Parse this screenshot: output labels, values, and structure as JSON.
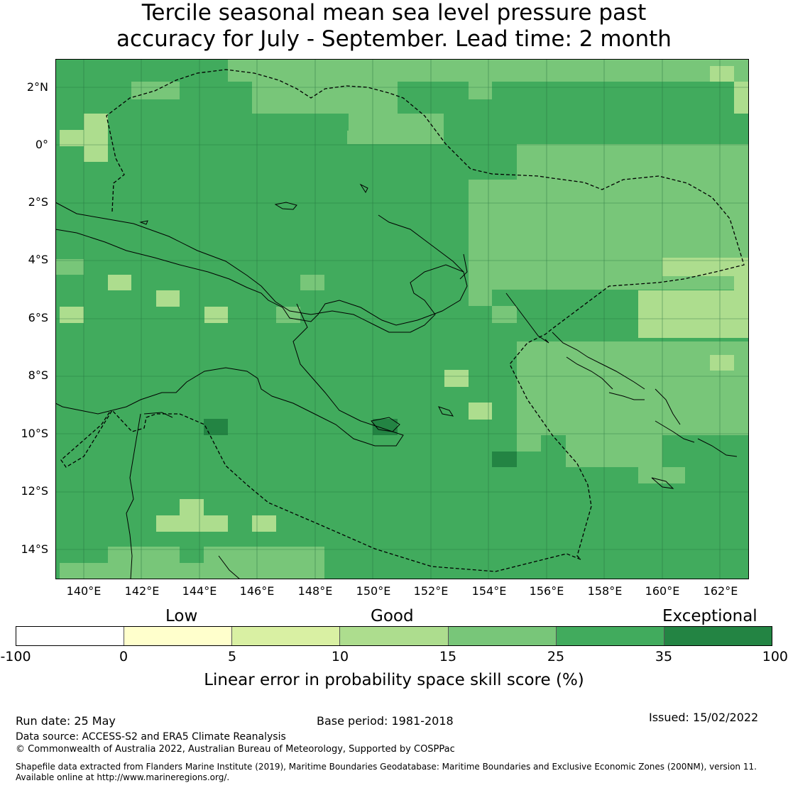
{
  "title_line1": "Tercile seasonal mean sea level pressure past",
  "title_line2": "accuracy for July - September. Lead time: 2 month",
  "lat_ticks": [
    "2°N",
    "0°",
    "2°S",
    "4°S",
    "6°S",
    "8°S",
    "10°S",
    "12°S",
    "14°S"
  ],
  "lon_ticks": [
    "140°E",
    "142°E",
    "144°E",
    "146°E",
    "148°E",
    "150°E",
    "152°E",
    "154°E",
    "156°E",
    "158°E",
    "160°E",
    "162°E"
  ],
  "colorbar": {
    "categories": [
      "Low",
      "Good",
      "Exceptional"
    ],
    "tick_labels": [
      "-100",
      "0",
      "5",
      "10",
      "15",
      "25",
      "35",
      "100"
    ],
    "label": "Linear error in probability space skill score (%)",
    "colors": [
      "#ffffff",
      "#ffffcc",
      "#d9f0a3",
      "#addd8e",
      "#78c679",
      "#41ab5d",
      "#238443"
    ]
  },
  "footer": {
    "run_date": "Run date: 25 May",
    "base_period": "Base period: 1981-2018",
    "issued": "Issued: 15/02/2022",
    "data_source": "Data source: ACCESS-S2 and ERA5 Climate Reanalysis",
    "copyright": "© Commonwealth of Australia 2022, Australian Bureau of Meteorology, Supported by COSPPac",
    "shapefile_line1": "Shapefile data extracted from Flanders Marine Institute (2019), Maritime Boundaries Geodatabase: Maritime Boundaries and Exclusive Economic Zones (200NM), version 11.",
    "shapefile_line2": "Available online at http://www.marineregions.org/."
  }
}
